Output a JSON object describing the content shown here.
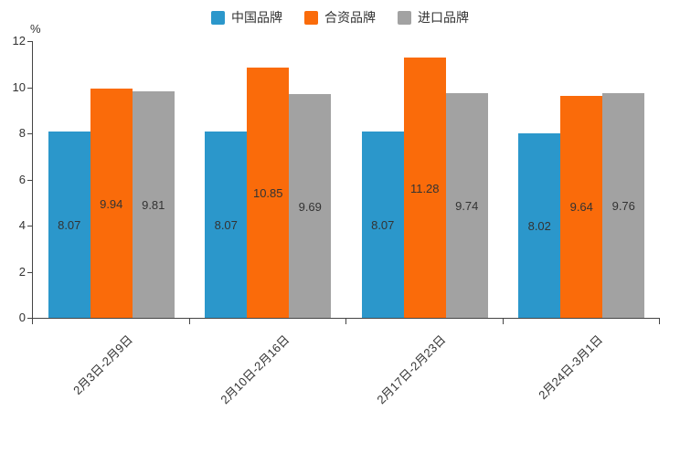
{
  "chart_data": {
    "type": "bar",
    "title": "",
    "xlabel": "",
    "ylabel": "%",
    "ylim": [
      0,
      12
    ],
    "yticks": [
      0,
      2,
      4,
      6,
      8,
      10,
      12
    ],
    "grid": false,
    "legend_position": "top",
    "categories": [
      "2月3日-2月9日",
      "2月10日-2月16日",
      "2月17日-2月23日",
      "2月24日-3月1日"
    ],
    "series": [
      {
        "name": "中国品牌",
        "color": "#2b97cb",
        "values": [
          8.07,
          8.07,
          8.07,
          8.02
        ]
      },
      {
        "name": "合资品牌",
        "color": "#fa6b0a",
        "values": [
          9.94,
          10.85,
          11.28,
          9.64
        ]
      },
      {
        "name": "进口品牌",
        "color": "#a2a2a2",
        "values": [
          9.81,
          9.69,
          9.74,
          9.76
        ]
      }
    ]
  }
}
